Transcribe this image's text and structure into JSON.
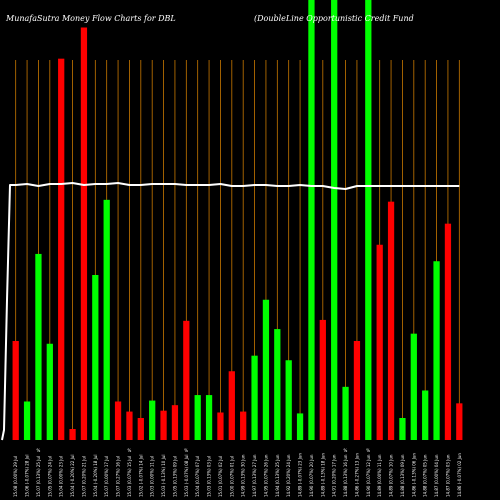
{
  "chart_data": {
    "type": "bar",
    "title": "MunafaSutra  Money Flow  Charts for DBL",
    "subtitle": "(DoubleLine  Opportunistic Credit Fund",
    "categories": [
      "Tue 29 Jul",
      "Mon 28 Jul",
      "Fri 25 Jul",
      "Thu 24 Jul",
      "Wed 23 Jul",
      "Tue 22 Jul",
      "Mon 21 Jul",
      "Fri 18 Jul",
      "Thu 17 Jul",
      "Wed 16 Jul",
      "Tue 15 Jul",
      "Mon 14 Jul",
      "Fri 11 Jul",
      "Thu 10 Jul",
      "Wed 09 Jul",
      "Tue 08 Jul",
      "Mon 07 Jul",
      "Thu 03 Jul",
      "Wed 02 Jul",
      "Tue 01 Jul",
      "Mon 30 Jun",
      "Fri 27 Jun",
      "Thu 26 Jun",
      "Wed 25 Jun",
      "Tue 24 Jun",
      "Mon 23 Jun",
      "Fri 20 Jun",
      "Wed 18 Jun",
      "Tue 17 Jun",
      "Mon 16 Jun",
      "Fri 13 Jun",
      "Thu 12 Jun",
      "Wed 11 Jun",
      "Tue 10 Jun",
      "Mon 09 Jun",
      "Fri 06 Jun",
      "Thu 05 Jun",
      "Wed 04 Jun",
      "Tue 03 Jun",
      "Mon 02 Jun"
    ],
    "xlabels": [
      "15.08 (0.00%) 29 Jul",
      "15.06 (-0.07%) 28 Jul",
      "15.07 (0.13%) 25 Jul",
      "15.05 (0.07%) 24 Jul",
      "15.04 (0.00%) 23 Jul",
      "15.04 (-0.20%) 22 Jul",
      "15.07 (0.20%) 21 Jul",
      "15.04 (-0.20%) 18 Jul",
      "15.07 (0.00%) 17 Jul",
      "15.07 (0.27%) 16 Jul",
      "15.03 (0.07%) 15 Jul",
      "15.02 (-0.07%) 14 Jul",
      "15.03 (0.00%) 11 Jul",
      "15.03 (-0.13%) 10 Jul",
      "15.05 (0.13%) 09 Jul",
      "15.03 (-0.07%) 08 Jul",
      "15.04 (0.07%) 07 Jul",
      "15.03 (0.13%) 03 Jul",
      "15.01 (0.07%) 02 Jul",
      "15.00 (0.07%) 01 Jul",
      "14.99 (0.13%) 30 Jun",
      "14.97 (0.13%) 27 Jun",
      "14.95 (0.07%) 26 Jun",
      "14.94 (0.13%) 25 Jun",
      "14.92 (0.20%) 24 Jun",
      "14.89 (-0.07%) 23 Jun",
      "14.90 (0.07%) 20 Jun",
      "14.89 (-0.13%) 18 Jun",
      "14.91 (0.20%) 17 Jun",
      "14.88 (0.13%) 16 Jun",
      "14.86 (-0.27%) 13 Jun",
      "14.90 (0.07%) 12 Jun",
      "14.89 (0.00%) 11 Jun",
      "14.89 (0.07%) 10 Jun",
      "14.88 (0.13%) 09 Jun",
      "14.86 (-0.13%) 06 Jun",
      "14.88 (0.07%) 05 Jun",
      "14.87 (0.00%) 04 Jun",
      "14.87 (0.07%) 03 Jun",
      "14.86 (-0.07%) 02 Jun"
    ],
    "colors": [
      "red",
      "green",
      "green",
      "green",
      "red",
      "red",
      "red",
      "green",
      "green",
      "red",
      "red",
      "red",
      "green",
      "red",
      "red",
      "red",
      "green",
      "green",
      "red",
      "red",
      "red",
      "green",
      "green",
      "green",
      "green",
      "green",
      "green",
      "red",
      "green",
      "green",
      "red",
      "green",
      "red",
      "red",
      "green",
      "green",
      "green",
      "green",
      "red",
      "red"
    ],
    "values": [
      108,
      42,
      203,
      105,
      416,
      12,
      450,
      180,
      262,
      42,
      31,
      24,
      43,
      32,
      38,
      130,
      49,
      49,
      30,
      75,
      31,
      92,
      153,
      121,
      87,
      29,
      480,
      131,
      480,
      58,
      108,
      480,
      213,
      260,
      24,
      116,
      54,
      195,
      236,
      40
    ],
    "price_line": [
      185,
      184,
      186,
      184,
      184,
      183,
      185,
      184,
      184,
      183,
      185,
      185,
      184,
      184,
      184,
      185,
      185,
      185,
      184,
      186,
      186,
      185,
      185,
      186,
      186,
      185,
      186,
      186,
      188,
      189,
      186,
      186,
      186,
      186,
      186,
      186,
      186,
      186,
      186,
      186
    ],
    "percent_marks": [
      "%",
      "%",
      "%",
      "%",
      "%"
    ],
    "xlabel": "",
    "ylabel": "",
    "ylim": [
      0,
      480
    ],
    "grid": true,
    "bar_colors": {
      "red": "#ff0000",
      "green": "#00ff00"
    },
    "background": "#000000",
    "grid_color": "#c87800",
    "line_color": "#ffffff"
  }
}
